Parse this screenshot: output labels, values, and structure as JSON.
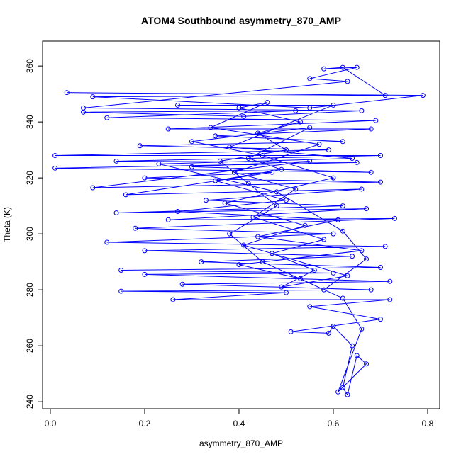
{
  "chart_data": {
    "type": "line",
    "title": "ATOM4 Southbound asymmetry_870_AMP",
    "x_label": "asymmetry_870_AMP",
    "y_label": "Theta (K)",
    "color": "#0000ff",
    "markers": true,
    "xlim": [
      -0.0165,
      0.8256
    ],
    "ylim": [
      237.5,
      368.9
    ],
    "xticks": [
      {
        "value": 0,
        "label": "0.0"
      },
      0.2,
      0.4,
      0.6,
      0.8
    ],
    "yticks": [
      240,
      260,
      280,
      300,
      320,
      340,
      360
    ],
    "x": [
      0.035,
      0.79,
      0.55,
      0.09,
      0.71,
      0.62,
      0.58,
      0.65,
      0.55,
      0.63,
      0.07,
      0.66,
      0.41,
      0.07,
      0.52,
      0.12,
      0.69,
      0.25,
      0.68,
      0.35,
      0.62,
      0.19,
      0.59,
      0.01,
      0.7,
      0.14,
      0.65,
      0.01,
      0.68,
      0.3,
      0.55,
      0.09,
      0.7,
      0.2,
      0.47,
      0.16,
      0.66,
      0.33,
      0.62,
      0.14,
      0.67,
      0.25,
      0.73,
      0.18,
      0.6,
      0.12,
      0.71,
      0.2,
      0.64,
      0.32,
      0.7,
      0.15,
      0.6,
      0.2,
      0.72,
      0.28,
      0.68,
      0.15,
      0.5,
      0.26,
      0.72,
      0.55,
      0.7,
      0.51,
      0.59,
      0.6,
      0.64,
      0.62,
      0.63,
      0.65,
      0.67,
      0.61,
      0.66,
      0.62,
      0.45,
      0.38,
      0.48,
      0.42,
      0.36,
      0.5,
      0.44,
      0.53,
      0.4,
      0.46,
      0.34,
      0.57,
      0.39,
      0.52,
      0.43,
      0.58,
      0.47,
      0.56,
      0.49,
      0.63,
      0.41,
      0.54,
      0.37,
      0.6,
      0.45,
      0.3,
      0.55,
      0.42,
      0.49,
      0.35,
      0.5,
      0.27,
      0.61,
      0.44,
      0.66,
      0.4,
      0.53,
      0.58,
      0.67,
      0.62,
      0.48,
      0.23,
      0.64,
      0.38,
      0.6,
      0.27
    ],
    "series": [
      {
        "name": "Theta",
        "values": [
          350.5,
          349.5,
          345,
          349,
          349.5,
          359.5,
          359,
          359.5,
          355.5,
          354.5,
          345,
          344,
          342,
          343.5,
          344,
          341.5,
          340.5,
          337.5,
          337.5,
          335,
          333,
          331.5,
          330,
          328,
          328,
          326,
          325.5,
          323.5,
          322,
          324,
          326,
          316.5,
          318.5,
          320,
          322,
          314,
          316,
          312,
          310,
          307.5,
          309,
          305,
          305.5,
          302,
          300,
          297,
          295.5,
          294,
          292,
          290,
          288,
          287,
          286,
          285.5,
          283,
          282,
          280,
          279.5,
          279,
          276.5,
          276.5,
          274,
          269.5,
          265,
          264.5,
          267,
          260,
          245,
          242.5,
          256.5,
          253.5,
          243.5,
          266,
          277,
          290,
          300,
          310,
          318,
          326,
          330,
          336,
          340,
          345,
          347,
          338,
          332,
          322,
          316,
          306,
          298,
          293,
          287,
          281,
          285,
          296,
          303,
          311,
          320,
          328,
          333,
          338,
          327,
          323,
          319,
          312,
          308,
          305,
          299,
          294,
          289,
          284,
          280,
          291,
          301,
          315,
          325,
          327,
          331,
          346,
          346
        ]
      }
    ]
  }
}
